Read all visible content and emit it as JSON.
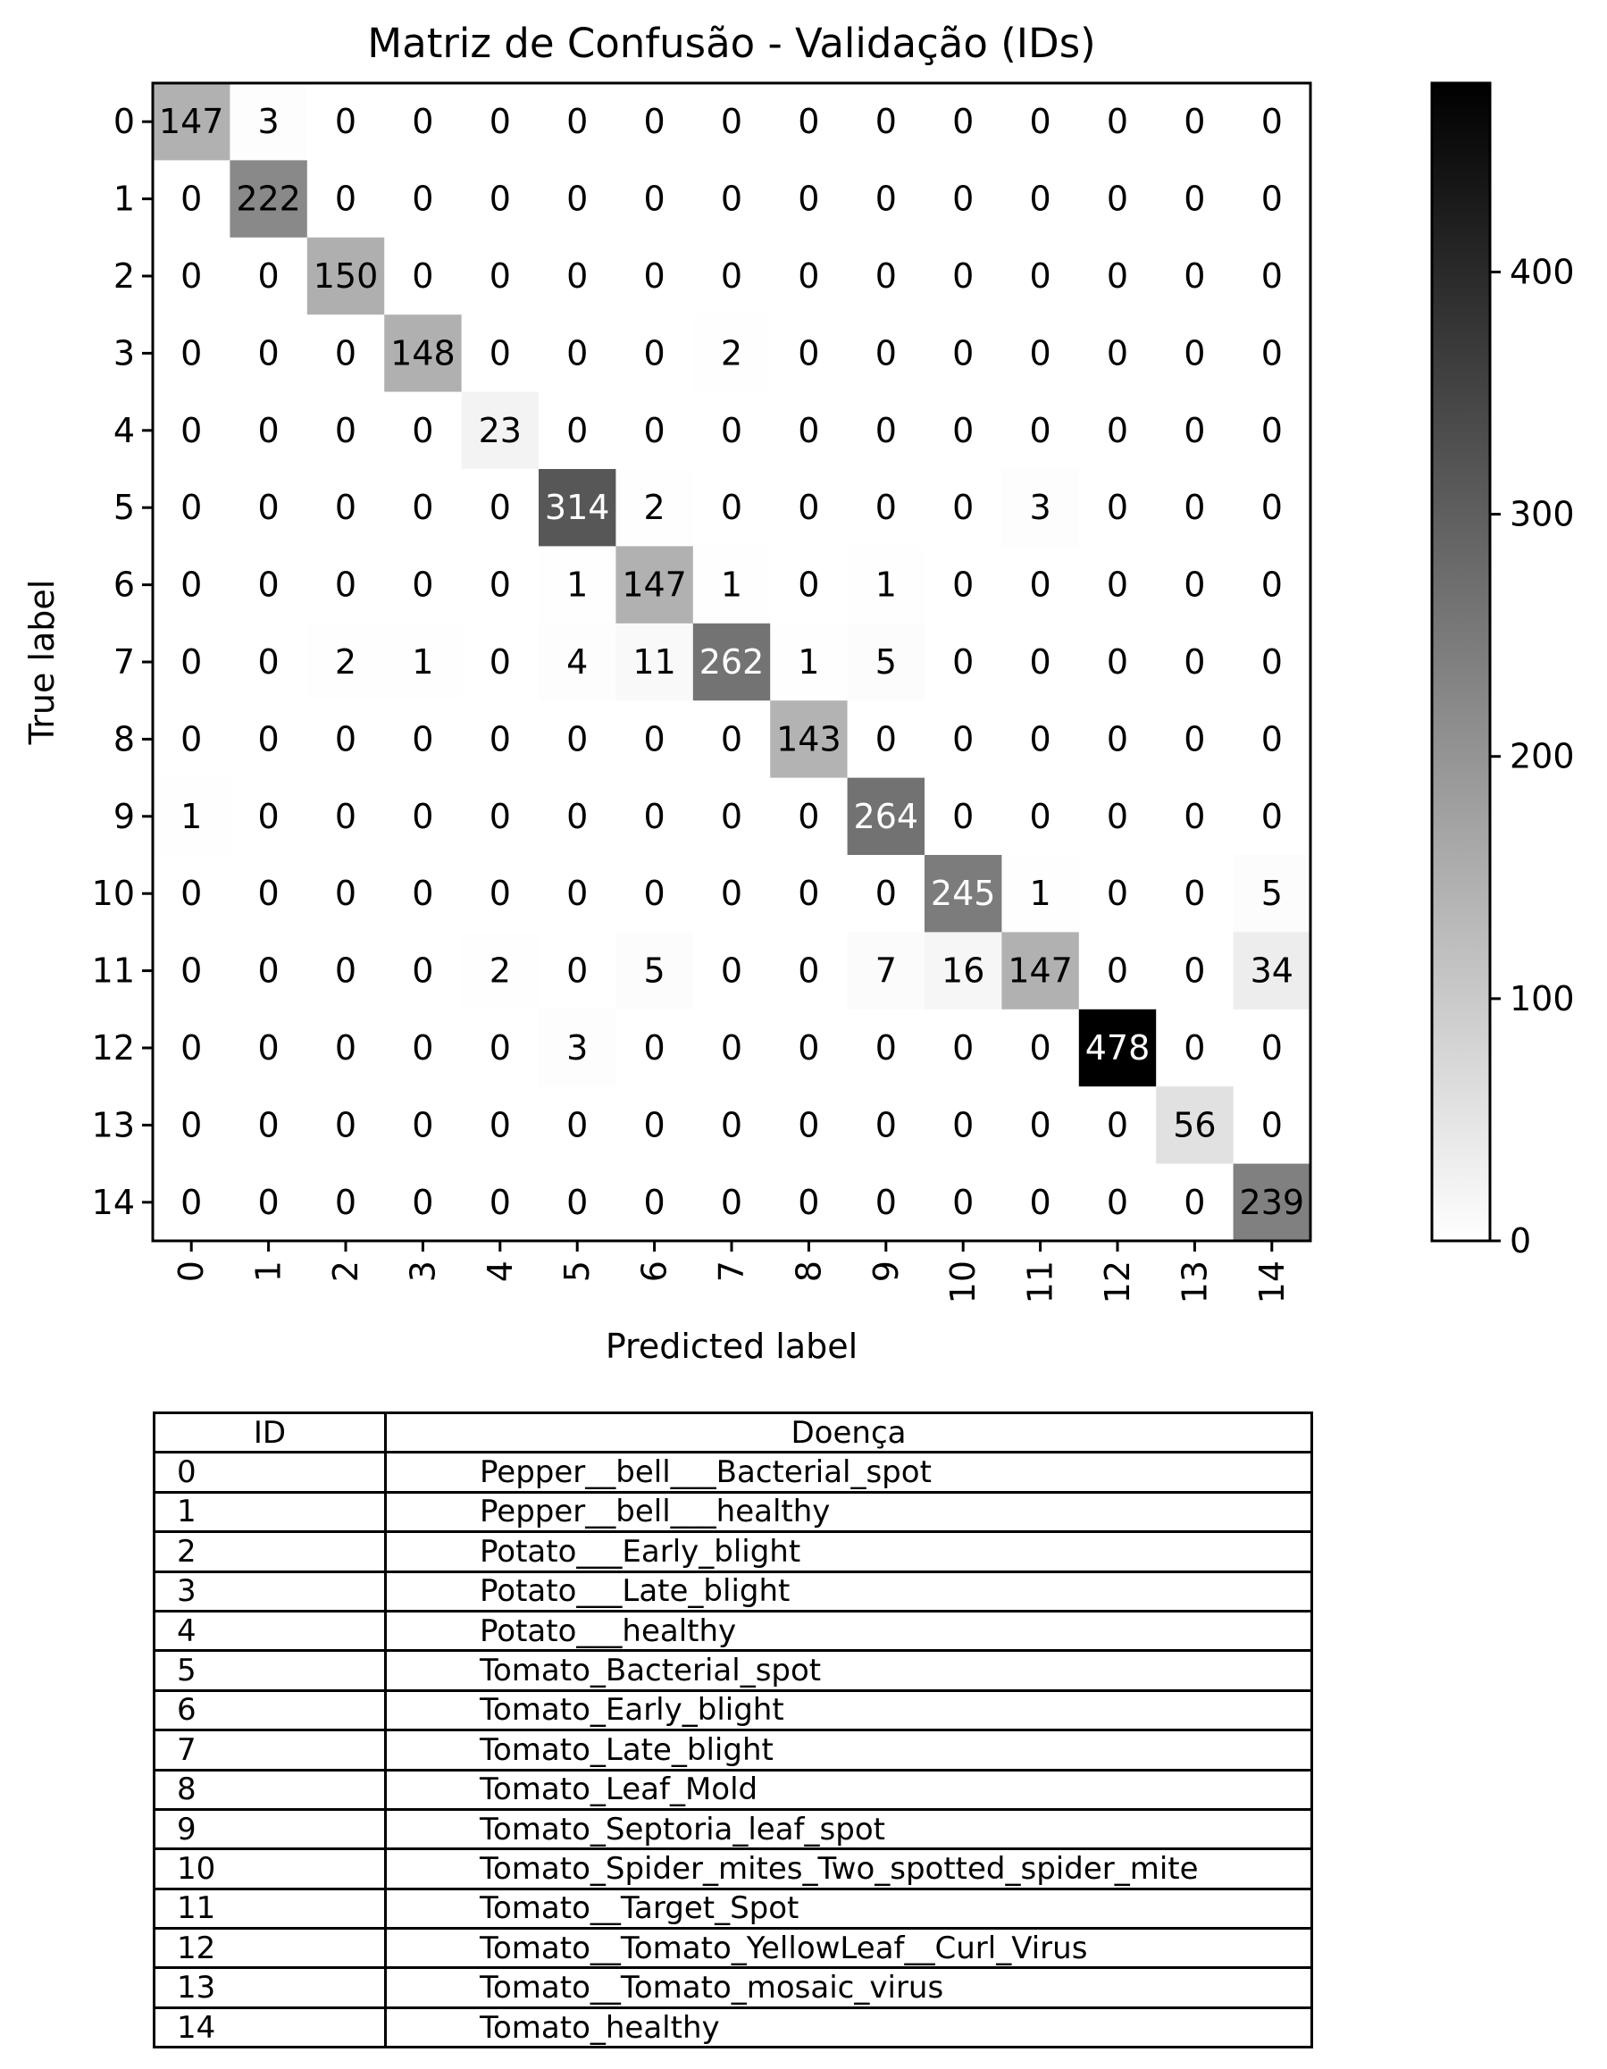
{
  "chart_data": {
    "type": "heatmap",
    "title": "Matriz de Confusão - Validação (IDs)",
    "xlabel": "Predicted label",
    "ylabel": "True label",
    "labels": [
      "0",
      "1",
      "2",
      "3",
      "4",
      "5",
      "6",
      "7",
      "8",
      "9",
      "10",
      "11",
      "12",
      "13",
      "14"
    ],
    "matrix": [
      [
        147,
        3,
        0,
        0,
        0,
        0,
        0,
        0,
        0,
        0,
        0,
        0,
        0,
        0,
        0
      ],
      [
        0,
        222,
        0,
        0,
        0,
        0,
        0,
        0,
        0,
        0,
        0,
        0,
        0,
        0,
        0
      ],
      [
        0,
        0,
        150,
        0,
        0,
        0,
        0,
        0,
        0,
        0,
        0,
        0,
        0,
        0,
        0
      ],
      [
        0,
        0,
        0,
        148,
        0,
        0,
        0,
        2,
        0,
        0,
        0,
        0,
        0,
        0,
        0
      ],
      [
        0,
        0,
        0,
        0,
        23,
        0,
        0,
        0,
        0,
        0,
        0,
        0,
        0,
        0,
        0
      ],
      [
        0,
        0,
        0,
        0,
        0,
        314,
        2,
        0,
        0,
        0,
        0,
        3,
        0,
        0,
        0
      ],
      [
        0,
        0,
        0,
        0,
        0,
        1,
        147,
        1,
        0,
        1,
        0,
        0,
        0,
        0,
        0
      ],
      [
        0,
        0,
        2,
        1,
        0,
        4,
        11,
        262,
        1,
        5,
        0,
        0,
        0,
        0,
        0
      ],
      [
        0,
        0,
        0,
        0,
        0,
        0,
        0,
        0,
        143,
        0,
        0,
        0,
        0,
        0,
        0
      ],
      [
        1,
        0,
        0,
        0,
        0,
        0,
        0,
        0,
        0,
        264,
        0,
        0,
        0,
        0,
        0
      ],
      [
        0,
        0,
        0,
        0,
        0,
        0,
        0,
        0,
        0,
        0,
        245,
        1,
        0,
        0,
        5
      ],
      [
        0,
        0,
        0,
        0,
        2,
        0,
        5,
        0,
        0,
        7,
        16,
        147,
        0,
        0,
        34
      ],
      [
        0,
        0,
        0,
        0,
        0,
        3,
        0,
        0,
        0,
        0,
        0,
        0,
        478,
        0,
        0
      ],
      [
        0,
        0,
        0,
        0,
        0,
        0,
        0,
        0,
        0,
        0,
        0,
        0,
        0,
        56,
        0
      ],
      [
        0,
        0,
        0,
        0,
        0,
        0,
        0,
        0,
        0,
        0,
        0,
        0,
        0,
        0,
        239
      ]
    ],
    "colormap": "Greys",
    "color_range": [
      0,
      478
    ],
    "colorbar_ticks": [
      "0",
      "100",
      "200",
      "300",
      "400"
    ],
    "grid": false
  },
  "table": {
    "headers": [
      "ID",
      "Doença"
    ],
    "rows": [
      [
        "0",
        "Pepper__bell___Bacterial_spot"
      ],
      [
        "1",
        "Pepper__bell___healthy"
      ],
      [
        "2",
        "Potato___Early_blight"
      ],
      [
        "3",
        "Potato___Late_blight"
      ],
      [
        "4",
        "Potato___healthy"
      ],
      [
        "5",
        "Tomato_Bacterial_spot"
      ],
      [
        "6",
        "Tomato_Early_blight"
      ],
      [
        "7",
        "Tomato_Late_blight"
      ],
      [
        "8",
        "Tomato_Leaf_Mold"
      ],
      [
        "9",
        "Tomato_Septoria_leaf_spot"
      ],
      [
        "10",
        "Tomato_Spider_mites_Two_spotted_spider_mite"
      ],
      [
        "11",
        "Tomato__Target_Spot"
      ],
      [
        "12",
        "Tomato__Tomato_YellowLeaf__Curl_Virus"
      ],
      [
        "13",
        "Tomato__Tomato_mosaic_virus"
      ],
      [
        "14",
        "Tomato_healthy"
      ]
    ]
  }
}
